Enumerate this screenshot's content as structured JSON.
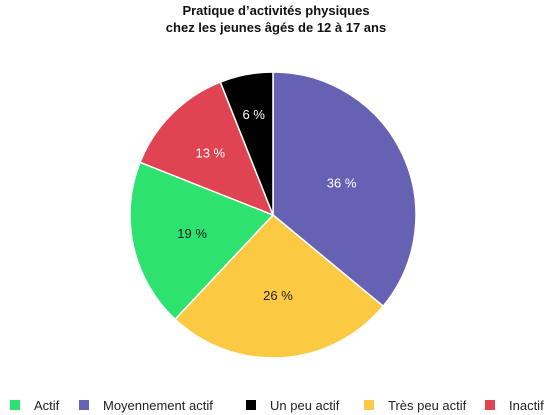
{
  "chart_data": {
    "type": "pie",
    "title_line1": "Pratique d’activités physiques",
    "title_line2": "chez les jeunes âgés de 12 à 17 ans",
    "slices": [
      {
        "label": "Moyennement actif",
        "value": 36,
        "value_label": "36 %",
        "color": "#6562b4"
      },
      {
        "label": "Très peu actif",
        "value": 26,
        "value_label": "26 %",
        "color": "#fcc943"
      },
      {
        "label": "Actif",
        "value": 19,
        "value_label": "19 %",
        "color": "#2de26f"
      },
      {
        "label": "Inactif",
        "value": 13,
        "value_label": "13 %",
        "color": "#e04453"
      },
      {
        "label": "Un peu actif",
        "value": 6,
        "value_label": "6 %",
        "color": "#000000"
      }
    ],
    "legend_order": [
      "Actif",
      "Moyennement actif",
      "Un peu actif",
      "Très peu actif",
      "Inactif"
    ],
    "legend_placement": "bottom"
  }
}
